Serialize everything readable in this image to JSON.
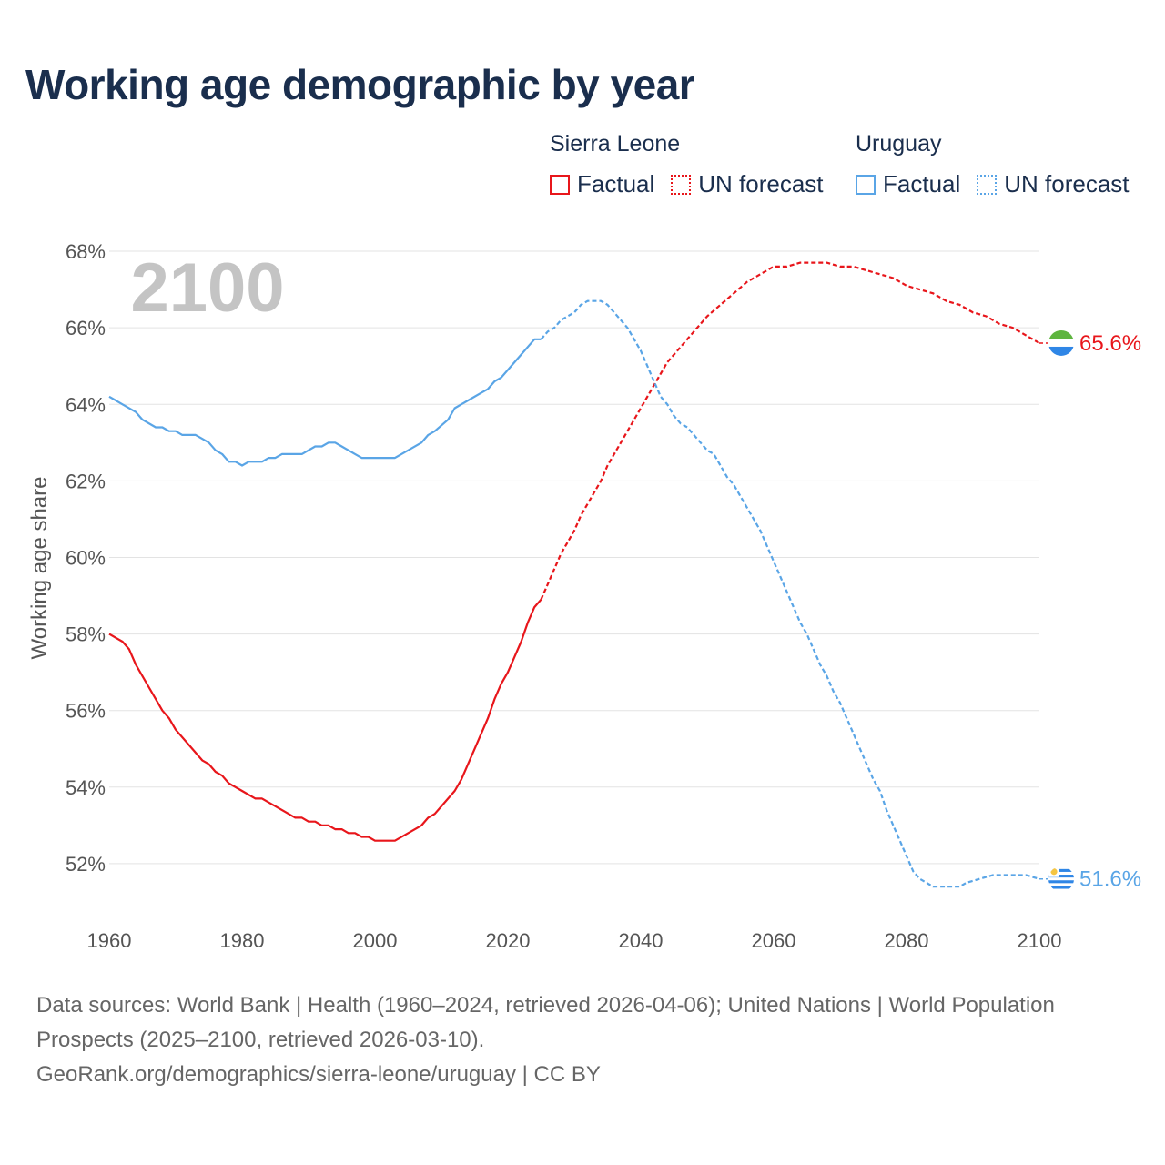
{
  "title": "Working age demographic by year",
  "legend": {
    "groups": [
      {
        "country": "Sierra Leone",
        "factual": "Factual",
        "forecast": "UN forecast",
        "color": "#e8161b"
      },
      {
        "country": "Uruguay",
        "factual": "Factual",
        "forecast": "UN forecast",
        "color": "#5aa5e6"
      }
    ]
  },
  "year_watermark": "2100",
  "footer": {
    "sources": "Data sources: World Bank | Health (1960–2024, retrieved 2026-04-06); United Nations | World Population Prospects (2025–2100, retrieved 2026-03-10).",
    "url": "GeoRank.org/demographics/sierra-leone/uruguay | CC BY"
  },
  "chart_data": {
    "type": "line",
    "title": "Working age demographic by year",
    "xlabel": "",
    "ylabel": "Working age share",
    "xlim": [
      1960,
      2100
    ],
    "ylim": [
      50.5,
      68.5
    ],
    "x_ticks": [
      1960,
      1980,
      2000,
      2020,
      2040,
      2060,
      2080,
      2100
    ],
    "y_ticks": [
      52,
      54,
      56,
      58,
      60,
      62,
      64,
      66,
      68
    ],
    "y_tick_suffix": "%",
    "forecast_start": 2025,
    "series": [
      {
        "name": "Sierra Leone",
        "color": "#e8161b",
        "end_label": "65.6%",
        "points": [
          [
            1960,
            58.0
          ],
          [
            1962,
            57.8
          ],
          [
            1963,
            57.6
          ],
          [
            1964,
            57.2
          ],
          [
            1966,
            56.6
          ],
          [
            1968,
            56.0
          ],
          [
            1969,
            55.8
          ],
          [
            1970,
            55.5
          ],
          [
            1972,
            55.1
          ],
          [
            1974,
            54.7
          ],
          [
            1975,
            54.6
          ],
          [
            1976,
            54.4
          ],
          [
            1977,
            54.3
          ],
          [
            1978,
            54.1
          ],
          [
            1980,
            53.9
          ],
          [
            1982,
            53.7
          ],
          [
            1983,
            53.7
          ],
          [
            1985,
            53.5
          ],
          [
            1987,
            53.3
          ],
          [
            1988,
            53.2
          ],
          [
            1989,
            53.2
          ],
          [
            1990,
            53.1
          ],
          [
            1991,
            53.1
          ],
          [
            1992,
            53.0
          ],
          [
            1993,
            53.0
          ],
          [
            1994,
            52.9
          ],
          [
            1995,
            52.9
          ],
          [
            1996,
            52.8
          ],
          [
            1997,
            52.8
          ],
          [
            1998,
            52.7
          ],
          [
            1999,
            52.7
          ],
          [
            2000,
            52.6
          ],
          [
            2003,
            52.6
          ],
          [
            2005,
            52.8
          ],
          [
            2007,
            53.0
          ],
          [
            2008,
            53.2
          ],
          [
            2009,
            53.3
          ],
          [
            2011,
            53.7
          ],
          [
            2012,
            53.9
          ],
          [
            2013,
            54.2
          ],
          [
            2014,
            54.6
          ],
          [
            2015,
            55.0
          ],
          [
            2016,
            55.4
          ],
          [
            2017,
            55.8
          ],
          [
            2018,
            56.3
          ],
          [
            2019,
            56.7
          ],
          [
            2020,
            57.0
          ],
          [
            2021,
            57.4
          ],
          [
            2022,
            57.8
          ],
          [
            2023,
            58.3
          ],
          [
            2024,
            58.7
          ],
          [
            2025,
            58.9
          ],
          [
            2026,
            59.3
          ],
          [
            2027,
            59.7
          ],
          [
            2028,
            60.1
          ],
          [
            2029,
            60.4
          ],
          [
            2030,
            60.7
          ],
          [
            2031,
            61.1
          ],
          [
            2032,
            61.4
          ],
          [
            2033,
            61.7
          ],
          [
            2034,
            62.0
          ],
          [
            2035,
            62.4
          ],
          [
            2036,
            62.7
          ],
          [
            2037,
            63.0
          ],
          [
            2038,
            63.3
          ],
          [
            2039,
            63.6
          ],
          [
            2040,
            63.9
          ],
          [
            2041,
            64.2
          ],
          [
            2042,
            64.5
          ],
          [
            2043,
            64.8
          ],
          [
            2044,
            65.1
          ],
          [
            2046,
            65.5
          ],
          [
            2048,
            65.9
          ],
          [
            2050,
            66.3
          ],
          [
            2052,
            66.6
          ],
          [
            2054,
            66.9
          ],
          [
            2056,
            67.2
          ],
          [
            2058,
            67.4
          ],
          [
            2060,
            67.6
          ],
          [
            2062,
            67.6
          ],
          [
            2064,
            67.7
          ],
          [
            2068,
            67.7
          ],
          [
            2070,
            67.6
          ],
          [
            2072,
            67.6
          ],
          [
            2074,
            67.5
          ],
          [
            2076,
            67.4
          ],
          [
            2078,
            67.3
          ],
          [
            2080,
            67.1
          ],
          [
            2082,
            67.0
          ],
          [
            2084,
            66.9
          ],
          [
            2086,
            66.7
          ],
          [
            2088,
            66.6
          ],
          [
            2090,
            66.4
          ],
          [
            2092,
            66.3
          ],
          [
            2094,
            66.1
          ],
          [
            2096,
            66.0
          ],
          [
            2098,
            65.8
          ],
          [
            2100,
            65.6
          ]
        ]
      },
      {
        "name": "Uruguay",
        "color": "#5aa5e6",
        "end_label": "51.6%",
        "points": [
          [
            1960,
            64.2
          ],
          [
            1962,
            64.0
          ],
          [
            1964,
            63.8
          ],
          [
            1965,
            63.6
          ],
          [
            1967,
            63.4
          ],
          [
            1968,
            63.4
          ],
          [
            1969,
            63.3
          ],
          [
            1970,
            63.3
          ],
          [
            1971,
            63.2
          ],
          [
            1973,
            63.2
          ],
          [
            1974,
            63.1
          ],
          [
            1975,
            63.0
          ],
          [
            1976,
            62.8
          ],
          [
            1977,
            62.7
          ],
          [
            1978,
            62.5
          ],
          [
            1979,
            62.5
          ],
          [
            1980,
            62.4
          ],
          [
            1981,
            62.5
          ],
          [
            1983,
            62.5
          ],
          [
            1984,
            62.6
          ],
          [
            1985,
            62.6
          ],
          [
            1986,
            62.7
          ],
          [
            1989,
            62.7
          ],
          [
            1990,
            62.8
          ],
          [
            1991,
            62.9
          ],
          [
            1992,
            62.9
          ],
          [
            1993,
            63.0
          ],
          [
            1994,
            63.0
          ],
          [
            1995,
            62.9
          ],
          [
            1996,
            62.8
          ],
          [
            1997,
            62.7
          ],
          [
            1998,
            62.6
          ],
          [
            2003,
            62.6
          ],
          [
            2005,
            62.8
          ],
          [
            2007,
            63.0
          ],
          [
            2008,
            63.2
          ],
          [
            2009,
            63.3
          ],
          [
            2011,
            63.6
          ],
          [
            2012,
            63.9
          ],
          [
            2014,
            64.1
          ],
          [
            2016,
            64.3
          ],
          [
            2017,
            64.4
          ],
          [
            2018,
            64.6
          ],
          [
            2019,
            64.7
          ],
          [
            2021,
            65.1
          ],
          [
            2023,
            65.5
          ],
          [
            2024,
            65.7
          ],
          [
            2025,
            65.7
          ],
          [
            2026,
            65.9
          ],
          [
            2027,
            66.0
          ],
          [
            2028,
            66.2
          ],
          [
            2029,
            66.3
          ],
          [
            2030,
            66.4
          ],
          [
            2031,
            66.6
          ],
          [
            2032,
            66.7
          ],
          [
            2034,
            66.7
          ],
          [
            2035,
            66.6
          ],
          [
            2036,
            66.4
          ],
          [
            2037,
            66.2
          ],
          [
            2038,
            66.0
          ],
          [
            2039,
            65.7
          ],
          [
            2040,
            65.4
          ],
          [
            2041,
            65.0
          ],
          [
            2042,
            64.6
          ],
          [
            2043,
            64.2
          ],
          [
            2044,
            64.0
          ],
          [
            2045,
            63.7
          ],
          [
            2046,
            63.5
          ],
          [
            2047,
            63.4
          ],
          [
            2048,
            63.2
          ],
          [
            2049,
            63.0
          ],
          [
            2050,
            62.8
          ],
          [
            2051,
            62.7
          ],
          [
            2052,
            62.4
          ],
          [
            2053,
            62.1
          ],
          [
            2054,
            61.9
          ],
          [
            2055,
            61.6
          ],
          [
            2056,
            61.3
          ],
          [
            2057,
            61.0
          ],
          [
            2058,
            60.7
          ],
          [
            2059,
            60.3
          ],
          [
            2060,
            59.9
          ],
          [
            2061,
            59.5
          ],
          [
            2062,
            59.1
          ],
          [
            2063,
            58.7
          ],
          [
            2064,
            58.3
          ],
          [
            2065,
            58.0
          ],
          [
            2066,
            57.6
          ],
          [
            2067,
            57.2
          ],
          [
            2068,
            56.9
          ],
          [
            2069,
            56.5
          ],
          [
            2070,
            56.2
          ],
          [
            2071,
            55.8
          ],
          [
            2072,
            55.4
          ],
          [
            2073,
            55.0
          ],
          [
            2074,
            54.6
          ],
          [
            2075,
            54.2
          ],
          [
            2076,
            53.9
          ],
          [
            2077,
            53.4
          ],
          [
            2078,
            53.0
          ],
          [
            2079,
            52.6
          ],
          [
            2080,
            52.2
          ],
          [
            2081,
            51.8
          ],
          [
            2082,
            51.6
          ],
          [
            2083,
            51.5
          ],
          [
            2084,
            51.4
          ],
          [
            2088,
            51.4
          ],
          [
            2089,
            51.5
          ],
          [
            2091,
            51.6
          ],
          [
            2093,
            51.7
          ],
          [
            2098,
            51.7
          ],
          [
            2100,
            51.6
          ]
        ]
      }
    ]
  }
}
